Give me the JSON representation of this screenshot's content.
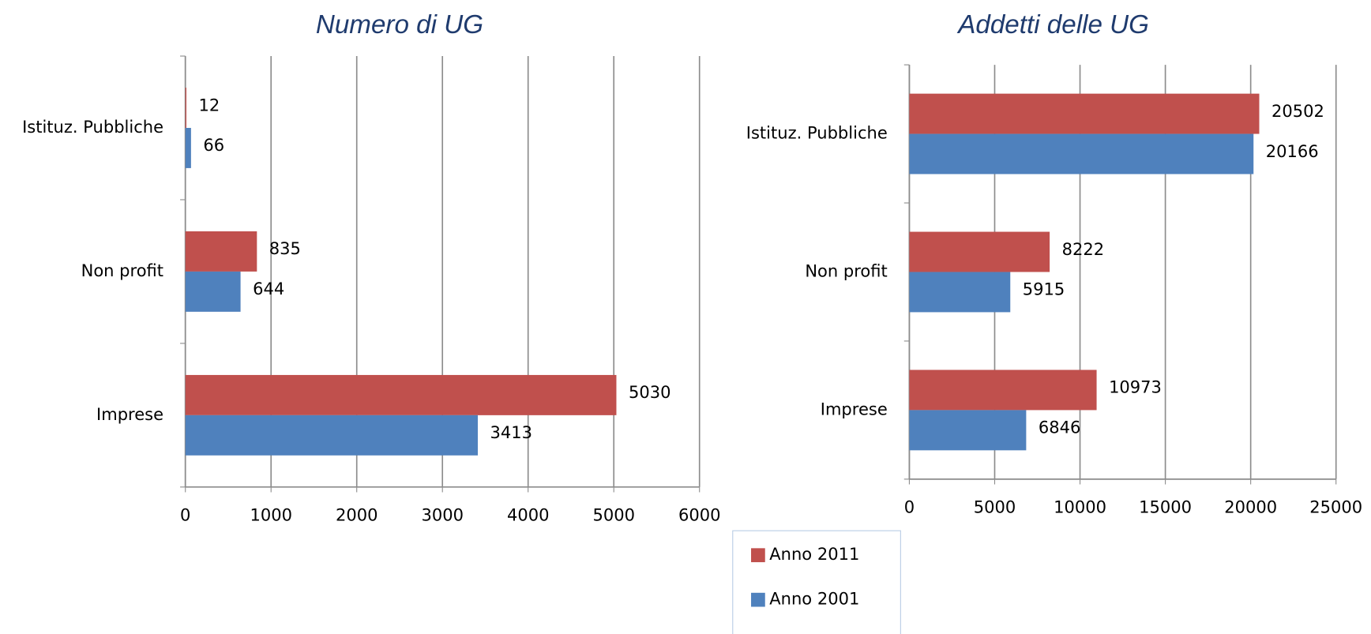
{
  "chart_data": [
    {
      "type": "bar",
      "orientation": "horizontal",
      "title": "Numero di UG",
      "categories": [
        "Istituz. Pubbliche",
        "Non profit",
        "Imprese"
      ],
      "series": [
        {
          "name": "Anno 2011",
          "color": "#c0504d",
          "values": [
            12,
            835,
            5030
          ]
        },
        {
          "name": "Anno 2001",
          "color": "#4f81bd",
          "values": [
            66,
            644,
            3413
          ]
        }
      ],
      "xlim": [
        0,
        6000
      ],
      "xticks": [
        0,
        1000,
        2000,
        3000,
        4000,
        5000,
        6000
      ],
      "grid": true
    },
    {
      "type": "bar",
      "orientation": "horizontal",
      "title": "Addetti delle UG",
      "categories": [
        "Istituz. Pubbliche",
        "Non profit",
        "Imprese"
      ],
      "series": [
        {
          "name": "Anno 2011",
          "color": "#c0504d",
          "values": [
            20502,
            8222,
            10973
          ]
        },
        {
          "name": "Anno 2001",
          "color": "#4f81bd",
          "values": [
            20166,
            5915,
            6846
          ]
        }
      ],
      "xlim": [
        0,
        25000
      ],
      "xticks": [
        0,
        5000,
        10000,
        15000,
        20000,
        25000
      ],
      "grid": true
    }
  ]
}
